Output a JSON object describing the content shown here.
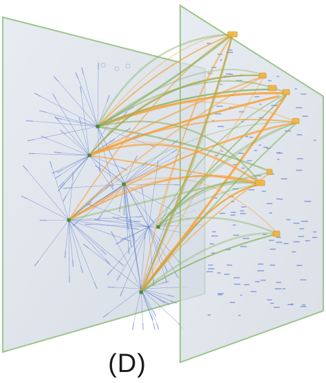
{
  "figure": {
    "panel_label": "(D)"
  },
  "colors": {
    "plane_fill": "#d6dde6",
    "plane_edge": "#9cc58a",
    "tree_edge": "#4a69c8",
    "tree_node": "#7f94d6",
    "link_orange": "#f5a23a",
    "link_green": "#86b05a",
    "highlight_node": "#f2b441",
    "anchor_node": "#4a8a2e"
  }
}
